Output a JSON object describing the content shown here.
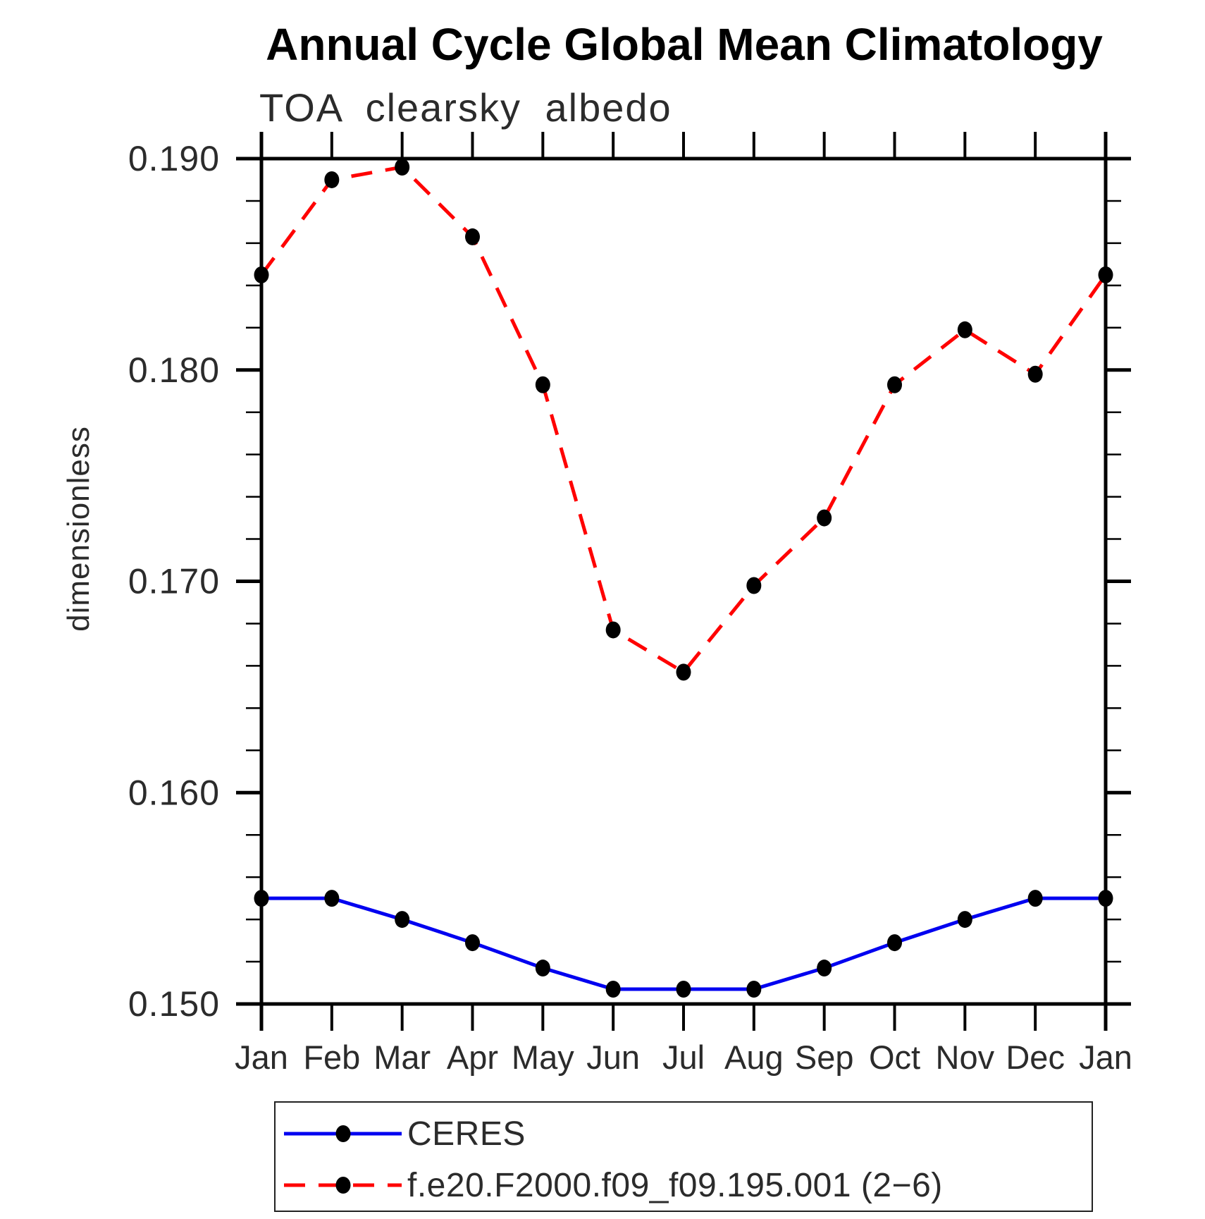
{
  "chart_data": {
    "type": "line",
    "title": "Annual Cycle Global Mean Climatology",
    "subtitle": "TOA clearsky albedo",
    "ylabel": "dimensionless",
    "xlabel": "",
    "categories": [
      "Jan",
      "Feb",
      "Mar",
      "Apr",
      "May",
      "Jun",
      "Jul",
      "Aug",
      "Sep",
      "Oct",
      "Nov",
      "Dec",
      "Jan"
    ],
    "ylim": [
      0.15,
      0.19
    ],
    "ytick_major": 0.01,
    "ytick_minor": 0.002,
    "ytick_labels": [
      "0.150",
      "0.160",
      "0.170",
      "0.180",
      "0.190"
    ],
    "grid": false,
    "legend_position": "bottom-left",
    "marker_color": "#000000",
    "series": [
      {
        "name": "CERES",
        "color": "#0000f0",
        "style": "solid",
        "values": [
          0.155,
          0.155,
          0.154,
          0.1529,
          0.1517,
          0.1507,
          0.1507,
          0.1507,
          0.1517,
          0.1529,
          0.154,
          0.155,
          0.155
        ]
      },
      {
        "name": "f.e20.F2000.f09_f09.195.001 (2−6)",
        "color": "#ff0000",
        "style": "dashed",
        "values": [
          0.1845,
          0.189,
          0.1896,
          0.1863,
          0.1793,
          0.1677,
          0.1657,
          0.1698,
          0.173,
          0.1793,
          0.1819,
          0.1798,
          0.1845
        ]
      }
    ]
  }
}
